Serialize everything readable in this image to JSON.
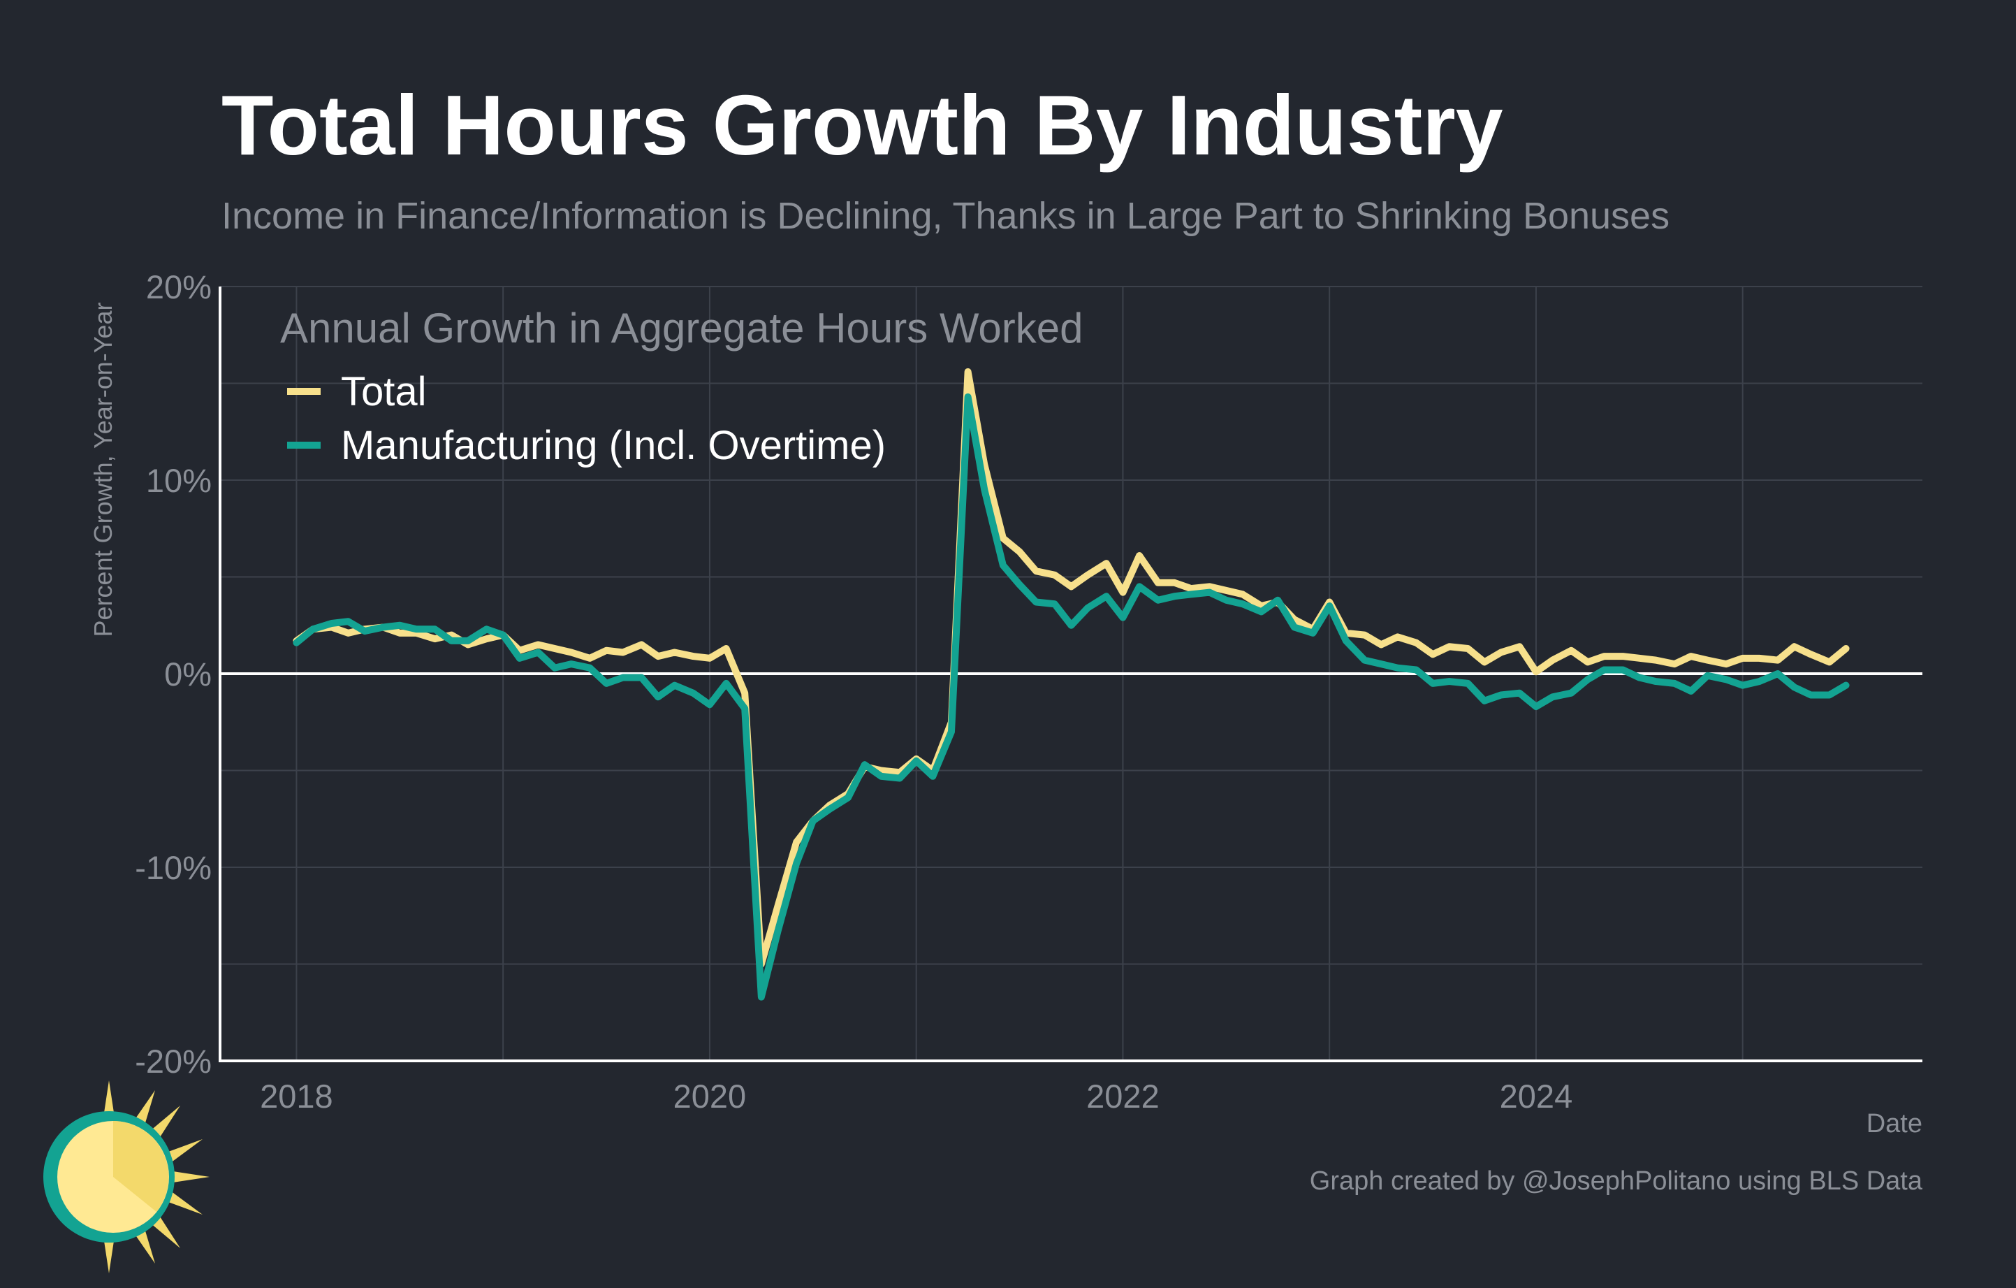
{
  "chart_data": {
    "type": "line",
    "title": "Total Hours Growth By Industry",
    "subtitle": "Income in Finance/Information is Declining, Thanks in Large Part to Shrinking Bonuses",
    "y_label": "Percent Growth, Year-on-Year",
    "x_label": "Date",
    "legend_title": "Annual Growth in Aggregate Hours Worked",
    "credit": "Graph created by @JosephPolitano using BLS Data",
    "legend_position": "upper left",
    "grid": true,
    "zero_line": 0,
    "xlim": [
      2017.63,
      2025.87
    ],
    "xticks": [
      2018,
      2020,
      2022,
      2024
    ],
    "x_minor_grid": [
      2019,
      2021,
      2023,
      2025
    ],
    "ylim": [
      -20,
      20
    ],
    "yticks": [
      {
        "value": -20,
        "label": "-20%"
      },
      {
        "value": -10,
        "label": "-10%"
      },
      {
        "value": 0,
        "label": "0%"
      },
      {
        "value": 10,
        "label": "10%"
      },
      {
        "value": 20,
        "label": "20%"
      }
    ],
    "y_minor_grid": [
      -15,
      -5,
      5,
      15
    ],
    "x": [
      2018,
      2018.08,
      2018.17,
      2018.25,
      2018.33,
      2018.42,
      2018.5,
      2018.58,
      2018.67,
      2018.75,
      2018.83,
      2018.92,
      2019,
      2019.08,
      2019.17,
      2019.25,
      2019.33,
      2019.42,
      2019.5,
      2019.58,
      2019.67,
      2019.75,
      2019.83,
      2019.92,
      2020,
      2020.08,
      2020.17,
      2020.25,
      2020.33,
      2020.42,
      2020.5,
      2020.58,
      2020.67,
      2020.75,
      2020.83,
      2020.92,
      2021,
      2021.08,
      2021.17,
      2021.25,
      2021.33,
      2021.42,
      2021.5,
      2021.58,
      2021.67,
      2021.75,
      2021.83,
      2021.92,
      2022,
      2022.08,
      2022.17,
      2022.25,
      2022.33,
      2022.42,
      2022.5,
      2022.58,
      2022.67,
      2022.75,
      2022.83,
      2022.92,
      2023,
      2023.08,
      2023.17,
      2023.25,
      2023.33,
      2023.42,
      2023.5,
      2023.58,
      2023.67,
      2023.75,
      2023.83,
      2023.92,
      2024,
      2024.08,
      2024.17,
      2024.25,
      2024.33,
      2024.42,
      2024.5,
      2024.58,
      2024.67,
      2024.75,
      2024.83,
      2024.92,
      2025,
      2025.08,
      2025.17,
      2025.25,
      2025.33,
      2025.42,
      2025.5
    ],
    "series": [
      {
        "name": "Total",
        "color": "#f7e08c",
        "values": [
          1.7,
          2.3,
          2.4,
          2.1,
          2.3,
          2.4,
          2.1,
          2.1,
          1.8,
          2.0,
          1.5,
          1.8,
          2.0,
          1.2,
          1.5,
          1.3,
          1.1,
          0.8,
          1.2,
          1.1,
          1.5,
          0.9,
          1.1,
          0.9,
          0.8,
          1.3,
          -1.0,
          -15.0,
          -12.0,
          -8.7,
          -7.6,
          -6.8,
          -6.2,
          -4.8,
          -5.0,
          -5.1,
          -4.4,
          -5.0,
          -2.5,
          15.6,
          10.8,
          7.0,
          6.3,
          5.3,
          5.1,
          4.5,
          5.1,
          5.7,
          4.2,
          6.1,
          4.7,
          4.7,
          4.4,
          4.5,
          4.3,
          4.1,
          3.5,
          3.7,
          2.8,
          2.3,
          3.7,
          2.1,
          2.0,
          1.5,
          1.9,
          1.6,
          1.0,
          1.4,
          1.3,
          0.6,
          1.1,
          1.4,
          0.1,
          0.7,
          1.2,
          0.6,
          0.9,
          0.9,
          0.8,
          0.7,
          0.5,
          0.9,
          0.7,
          0.5,
          0.8,
          0.8,
          0.7,
          1.4,
          1.0,
          0.6,
          1.3
        ]
      },
      {
        "name": "Manufacturing (Incl. Overtime)",
        "color": "#13a392",
        "values": [
          1.6,
          2.3,
          2.6,
          2.7,
          2.2,
          2.4,
          2.5,
          2.3,
          2.3,
          1.7,
          1.7,
          2.3,
          2.0,
          0.8,
          1.1,
          0.3,
          0.5,
          0.3,
          -0.5,
          -0.2,
          -0.2,
          -1.2,
          -0.6,
          -1.0,
          -1.6,
          -0.5,
          -1.8,
          -16.7,
          -13.3,
          -9.8,
          -7.6,
          -7.0,
          -6.4,
          -4.7,
          -5.3,
          -5.4,
          -4.5,
          -5.3,
          -3.0,
          14.3,
          9.5,
          5.6,
          4.6,
          3.7,
          3.6,
          2.5,
          3.4,
          4.0,
          2.9,
          4.5,
          3.8,
          4.0,
          4.1,
          4.2,
          3.8,
          3.6,
          3.2,
          3.8,
          2.4,
          2.1,
          3.5,
          1.7,
          0.7,
          0.5,
          0.3,
          0.2,
          -0.5,
          -0.4,
          -0.5,
          -1.4,
          -1.1,
          -1.0,
          -1.7,
          -1.2,
          -1.0,
          -0.3,
          0.2,
          0.2,
          -0.2,
          -0.4,
          -0.5,
          -0.9,
          -0.1,
          -0.3,
          -0.6,
          -0.4,
          0.0,
          -0.7,
          -1.1,
          -1.1,
          -0.6
        ]
      }
    ]
  }
}
